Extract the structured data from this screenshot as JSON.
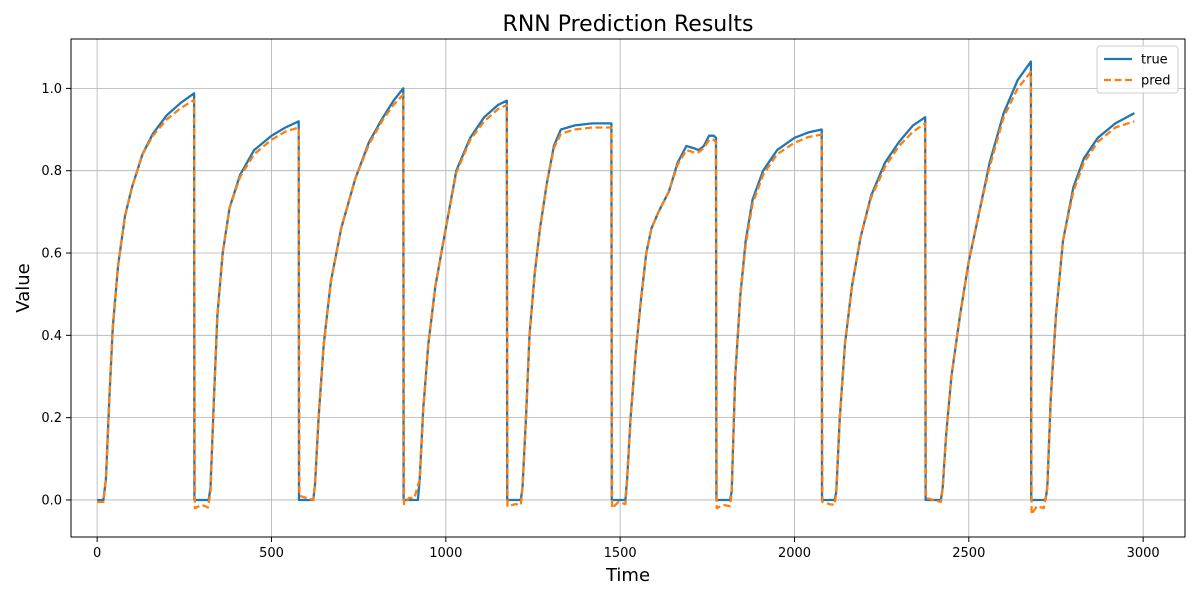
{
  "chart_data": {
    "type": "line",
    "title": "RNN Prediction Results",
    "xlabel": "Time",
    "ylabel": "Value",
    "xlim": [
      -75,
      3120
    ],
    "ylim": [
      -0.09,
      1.12
    ],
    "xticks": [
      0,
      500,
      1000,
      1500,
      2000,
      2500,
      3000
    ],
    "yticks": [
      0.0,
      0.2,
      0.4,
      0.6,
      0.8,
      1.0
    ],
    "xtick_labels": [
      "0",
      "500",
      "1000",
      "1500",
      "2000",
      "2500",
      "3000"
    ],
    "ytick_labels": [
      "0.0",
      "0.2",
      "0.4",
      "0.6",
      "0.8",
      "1.0"
    ],
    "grid": true,
    "legend_position": "top-right",
    "series": [
      {
        "name": "true",
        "color": "#1f77b4",
        "style": "solid",
        "points": [
          [
            0,
            0
          ],
          [
            18,
            0
          ],
          [
            25,
            0.05
          ],
          [
            35,
            0.25
          ],
          [
            45,
            0.42
          ],
          [
            60,
            0.57
          ],
          [
            80,
            0.69
          ],
          [
            100,
            0.76
          ],
          [
            130,
            0.84
          ],
          [
            160,
            0.89
          ],
          [
            200,
            0.935
          ],
          [
            240,
            0.965
          ],
          [
            278,
            0.988
          ],
          [
            279,
            0
          ],
          [
            320,
            0
          ],
          [
            325,
            0.03
          ],
          [
            335,
            0.25
          ],
          [
            345,
            0.45
          ],
          [
            360,
            0.6
          ],
          [
            380,
            0.71
          ],
          [
            410,
            0.79
          ],
          [
            450,
            0.85
          ],
          [
            500,
            0.885
          ],
          [
            540,
            0.905
          ],
          [
            578,
            0.92
          ],
          [
            579,
            0
          ],
          [
            620,
            0
          ],
          [
            625,
            0.04
          ],
          [
            635,
            0.2
          ],
          [
            650,
            0.38
          ],
          [
            670,
            0.53
          ],
          [
            700,
            0.66
          ],
          [
            740,
            0.78
          ],
          [
            780,
            0.87
          ],
          [
            820,
            0.93
          ],
          [
            850,
            0.97
          ],
          [
            878,
            1.0
          ],
          [
            879,
            0
          ],
          [
            920,
            0
          ],
          [
            925,
            0.05
          ],
          [
            935,
            0.22
          ],
          [
            950,
            0.38
          ],
          [
            970,
            0.52
          ],
          [
            1000,
            0.66
          ],
          [
            1030,
            0.8
          ],
          [
            1070,
            0.88
          ],
          [
            1110,
            0.93
          ],
          [
            1150,
            0.96
          ],
          [
            1175,
            0.97
          ],
          [
            1176,
            0
          ],
          [
            1215,
            0
          ],
          [
            1220,
            0.03
          ],
          [
            1230,
            0.2
          ],
          [
            1240,
            0.4
          ],
          [
            1255,
            0.55
          ],
          [
            1270,
            0.66
          ],
          [
            1290,
            0.77
          ],
          [
            1310,
            0.86
          ],
          [
            1330,
            0.9
          ],
          [
            1370,
            0.91
          ],
          [
            1420,
            0.915
          ],
          [
            1475,
            0.915
          ],
          [
            1476,
            0
          ],
          [
            1515,
            0
          ],
          [
            1520,
            0.05
          ],
          [
            1530,
            0.2
          ],
          [
            1545,
            0.36
          ],
          [
            1560,
            0.49
          ],
          [
            1575,
            0.6
          ],
          [
            1590,
            0.66
          ],
          [
            1610,
            0.7
          ],
          [
            1640,
            0.75
          ],
          [
            1665,
            0.82
          ],
          [
            1690,
            0.86
          ],
          [
            1710,
            0.855
          ],
          [
            1725,
            0.85
          ],
          [
            1740,
            0.86
          ],
          [
            1755,
            0.885
          ],
          [
            1768,
            0.885
          ],
          [
            1775,
            0.88
          ],
          [
            1776,
            0
          ],
          [
            1815,
            0
          ],
          [
            1820,
            0.02
          ],
          [
            1830,
            0.3
          ],
          [
            1845,
            0.5
          ],
          [
            1860,
            0.63
          ],
          [
            1880,
            0.73
          ],
          [
            1910,
            0.8
          ],
          [
            1950,
            0.85
          ],
          [
            2000,
            0.88
          ],
          [
            2040,
            0.893
          ],
          [
            2078,
            0.9
          ],
          [
            2079,
            0
          ],
          [
            2115,
            0
          ],
          [
            2120,
            0.02
          ],
          [
            2130,
            0.2
          ],
          [
            2145,
            0.38
          ],
          [
            2165,
            0.52
          ],
          [
            2190,
            0.64
          ],
          [
            2220,
            0.74
          ],
          [
            2260,
            0.82
          ],
          [
            2300,
            0.87
          ],
          [
            2340,
            0.91
          ],
          [
            2375,
            0.93
          ],
          [
            2376,
            0
          ],
          [
            2420,
            0
          ],
          [
            2425,
            0.03
          ],
          [
            2435,
            0.16
          ],
          [
            2450,
            0.3
          ],
          [
            2475,
            0.45
          ],
          [
            2500,
            0.58
          ],
          [
            2530,
            0.7
          ],
          [
            2560,
            0.82
          ],
          [
            2600,
            0.94
          ],
          [
            2640,
            1.02
          ],
          [
            2678,
            1.065
          ],
          [
            2679,
            0
          ],
          [
            2720,
            0
          ],
          [
            2725,
            0.03
          ],
          [
            2735,
            0.25
          ],
          [
            2750,
            0.45
          ],
          [
            2770,
            0.63
          ],
          [
            2800,
            0.76
          ],
          [
            2830,
            0.83
          ],
          [
            2870,
            0.88
          ],
          [
            2920,
            0.915
          ],
          [
            2975,
            0.94
          ]
        ]
      },
      {
        "name": "pred",
        "color": "#ff7f0e",
        "style": "dashed",
        "points": [
          [
            0,
            -0.005
          ],
          [
            18,
            -0.005
          ],
          [
            25,
            0.05
          ],
          [
            35,
            0.25
          ],
          [
            45,
            0.42
          ],
          [
            60,
            0.57
          ],
          [
            80,
            0.69
          ],
          [
            100,
            0.76
          ],
          [
            130,
            0.84
          ],
          [
            160,
            0.885
          ],
          [
            200,
            0.925
          ],
          [
            240,
            0.952
          ],
          [
            278,
            0.972
          ],
          [
            280,
            -0.02
          ],
          [
            300,
            -0.012
          ],
          [
            318,
            -0.018
          ],
          [
            325,
            0.02
          ],
          [
            335,
            0.25
          ],
          [
            345,
            0.45
          ],
          [
            360,
            0.6
          ],
          [
            380,
            0.71
          ],
          [
            410,
            0.785
          ],
          [
            450,
            0.84
          ],
          [
            500,
            0.875
          ],
          [
            540,
            0.895
          ],
          [
            578,
            0.905
          ],
          [
            580,
            0.01
          ],
          [
            600,
            0.005
          ],
          [
            620,
            0.0
          ],
          [
            625,
            0.04
          ],
          [
            635,
            0.2
          ],
          [
            650,
            0.38
          ],
          [
            670,
            0.53
          ],
          [
            700,
            0.66
          ],
          [
            740,
            0.78
          ],
          [
            780,
            0.865
          ],
          [
            820,
            0.925
          ],
          [
            850,
            0.96
          ],
          [
            878,
            0.985
          ],
          [
            880,
            -0.01
          ],
          [
            895,
            0.005
          ],
          [
            910,
            0.005
          ],
          [
            925,
            0.05
          ],
          [
            935,
            0.22
          ],
          [
            950,
            0.38
          ],
          [
            970,
            0.52
          ],
          [
            1000,
            0.66
          ],
          [
            1030,
            0.795
          ],
          [
            1070,
            0.875
          ],
          [
            1110,
            0.92
          ],
          [
            1150,
            0.95
          ],
          [
            1175,
            0.96
          ],
          [
            1177,
            -0.015
          ],
          [
            1200,
            -0.01
          ],
          [
            1215,
            -0.012
          ],
          [
            1220,
            0.03
          ],
          [
            1230,
            0.2
          ],
          [
            1240,
            0.4
          ],
          [
            1255,
            0.55
          ],
          [
            1270,
            0.66
          ],
          [
            1290,
            0.77
          ],
          [
            1310,
            0.855
          ],
          [
            1330,
            0.89
          ],
          [
            1370,
            0.9
          ],
          [
            1420,
            0.905
          ],
          [
            1475,
            0.905
          ],
          [
            1477,
            -0.02
          ],
          [
            1495,
            -0.005
          ],
          [
            1515,
            -0.01
          ],
          [
            1520,
            0.05
          ],
          [
            1530,
            0.2
          ],
          [
            1545,
            0.36
          ],
          [
            1560,
            0.49
          ],
          [
            1575,
            0.6
          ],
          [
            1590,
            0.66
          ],
          [
            1610,
            0.7
          ],
          [
            1640,
            0.75
          ],
          [
            1665,
            0.815
          ],
          [
            1690,
            0.85
          ],
          [
            1710,
            0.845
          ],
          [
            1725,
            0.845
          ],
          [
            1740,
            0.855
          ],
          [
            1755,
            0.875
          ],
          [
            1768,
            0.875
          ],
          [
            1775,
            0.87
          ],
          [
            1777,
            -0.02
          ],
          [
            1795,
            -0.012
          ],
          [
            1815,
            -0.015
          ],
          [
            1820,
            0.02
          ],
          [
            1830,
            0.3
          ],
          [
            1845,
            0.5
          ],
          [
            1860,
            0.62
          ],
          [
            1880,
            0.72
          ],
          [
            1910,
            0.79
          ],
          [
            1950,
            0.84
          ],
          [
            2000,
            0.868
          ],
          [
            2040,
            0.882
          ],
          [
            2078,
            0.888
          ],
          [
            2080,
            -0.005
          ],
          [
            2100,
            -0.01
          ],
          [
            2115,
            -0.012
          ],
          [
            2120,
            0.02
          ],
          [
            2130,
            0.2
          ],
          [
            2145,
            0.38
          ],
          [
            2165,
            0.52
          ],
          [
            2190,
            0.64
          ],
          [
            2220,
            0.735
          ],
          [
            2260,
            0.81
          ],
          [
            2300,
            0.86
          ],
          [
            2340,
            0.895
          ],
          [
            2375,
            0.915
          ],
          [
            2377,
            0.005
          ],
          [
            2400,
            0.0
          ],
          [
            2420,
            -0.005
          ],
          [
            2425,
            0.03
          ],
          [
            2435,
            0.16
          ],
          [
            2450,
            0.3
          ],
          [
            2475,
            0.45
          ],
          [
            2500,
            0.58
          ],
          [
            2530,
            0.7
          ],
          [
            2560,
            0.81
          ],
          [
            2600,
            0.93
          ],
          [
            2640,
            1.0
          ],
          [
            2678,
            1.04
          ],
          [
            2680,
            -0.035
          ],
          [
            2695,
            -0.015
          ],
          [
            2715,
            -0.02
          ],
          [
            2725,
            0.03
          ],
          [
            2735,
            0.25
          ],
          [
            2750,
            0.45
          ],
          [
            2770,
            0.63
          ],
          [
            2800,
            0.75
          ],
          [
            2830,
            0.82
          ],
          [
            2870,
            0.87
          ],
          [
            2920,
            0.905
          ],
          [
            2975,
            0.92
          ]
        ]
      }
    ]
  }
}
